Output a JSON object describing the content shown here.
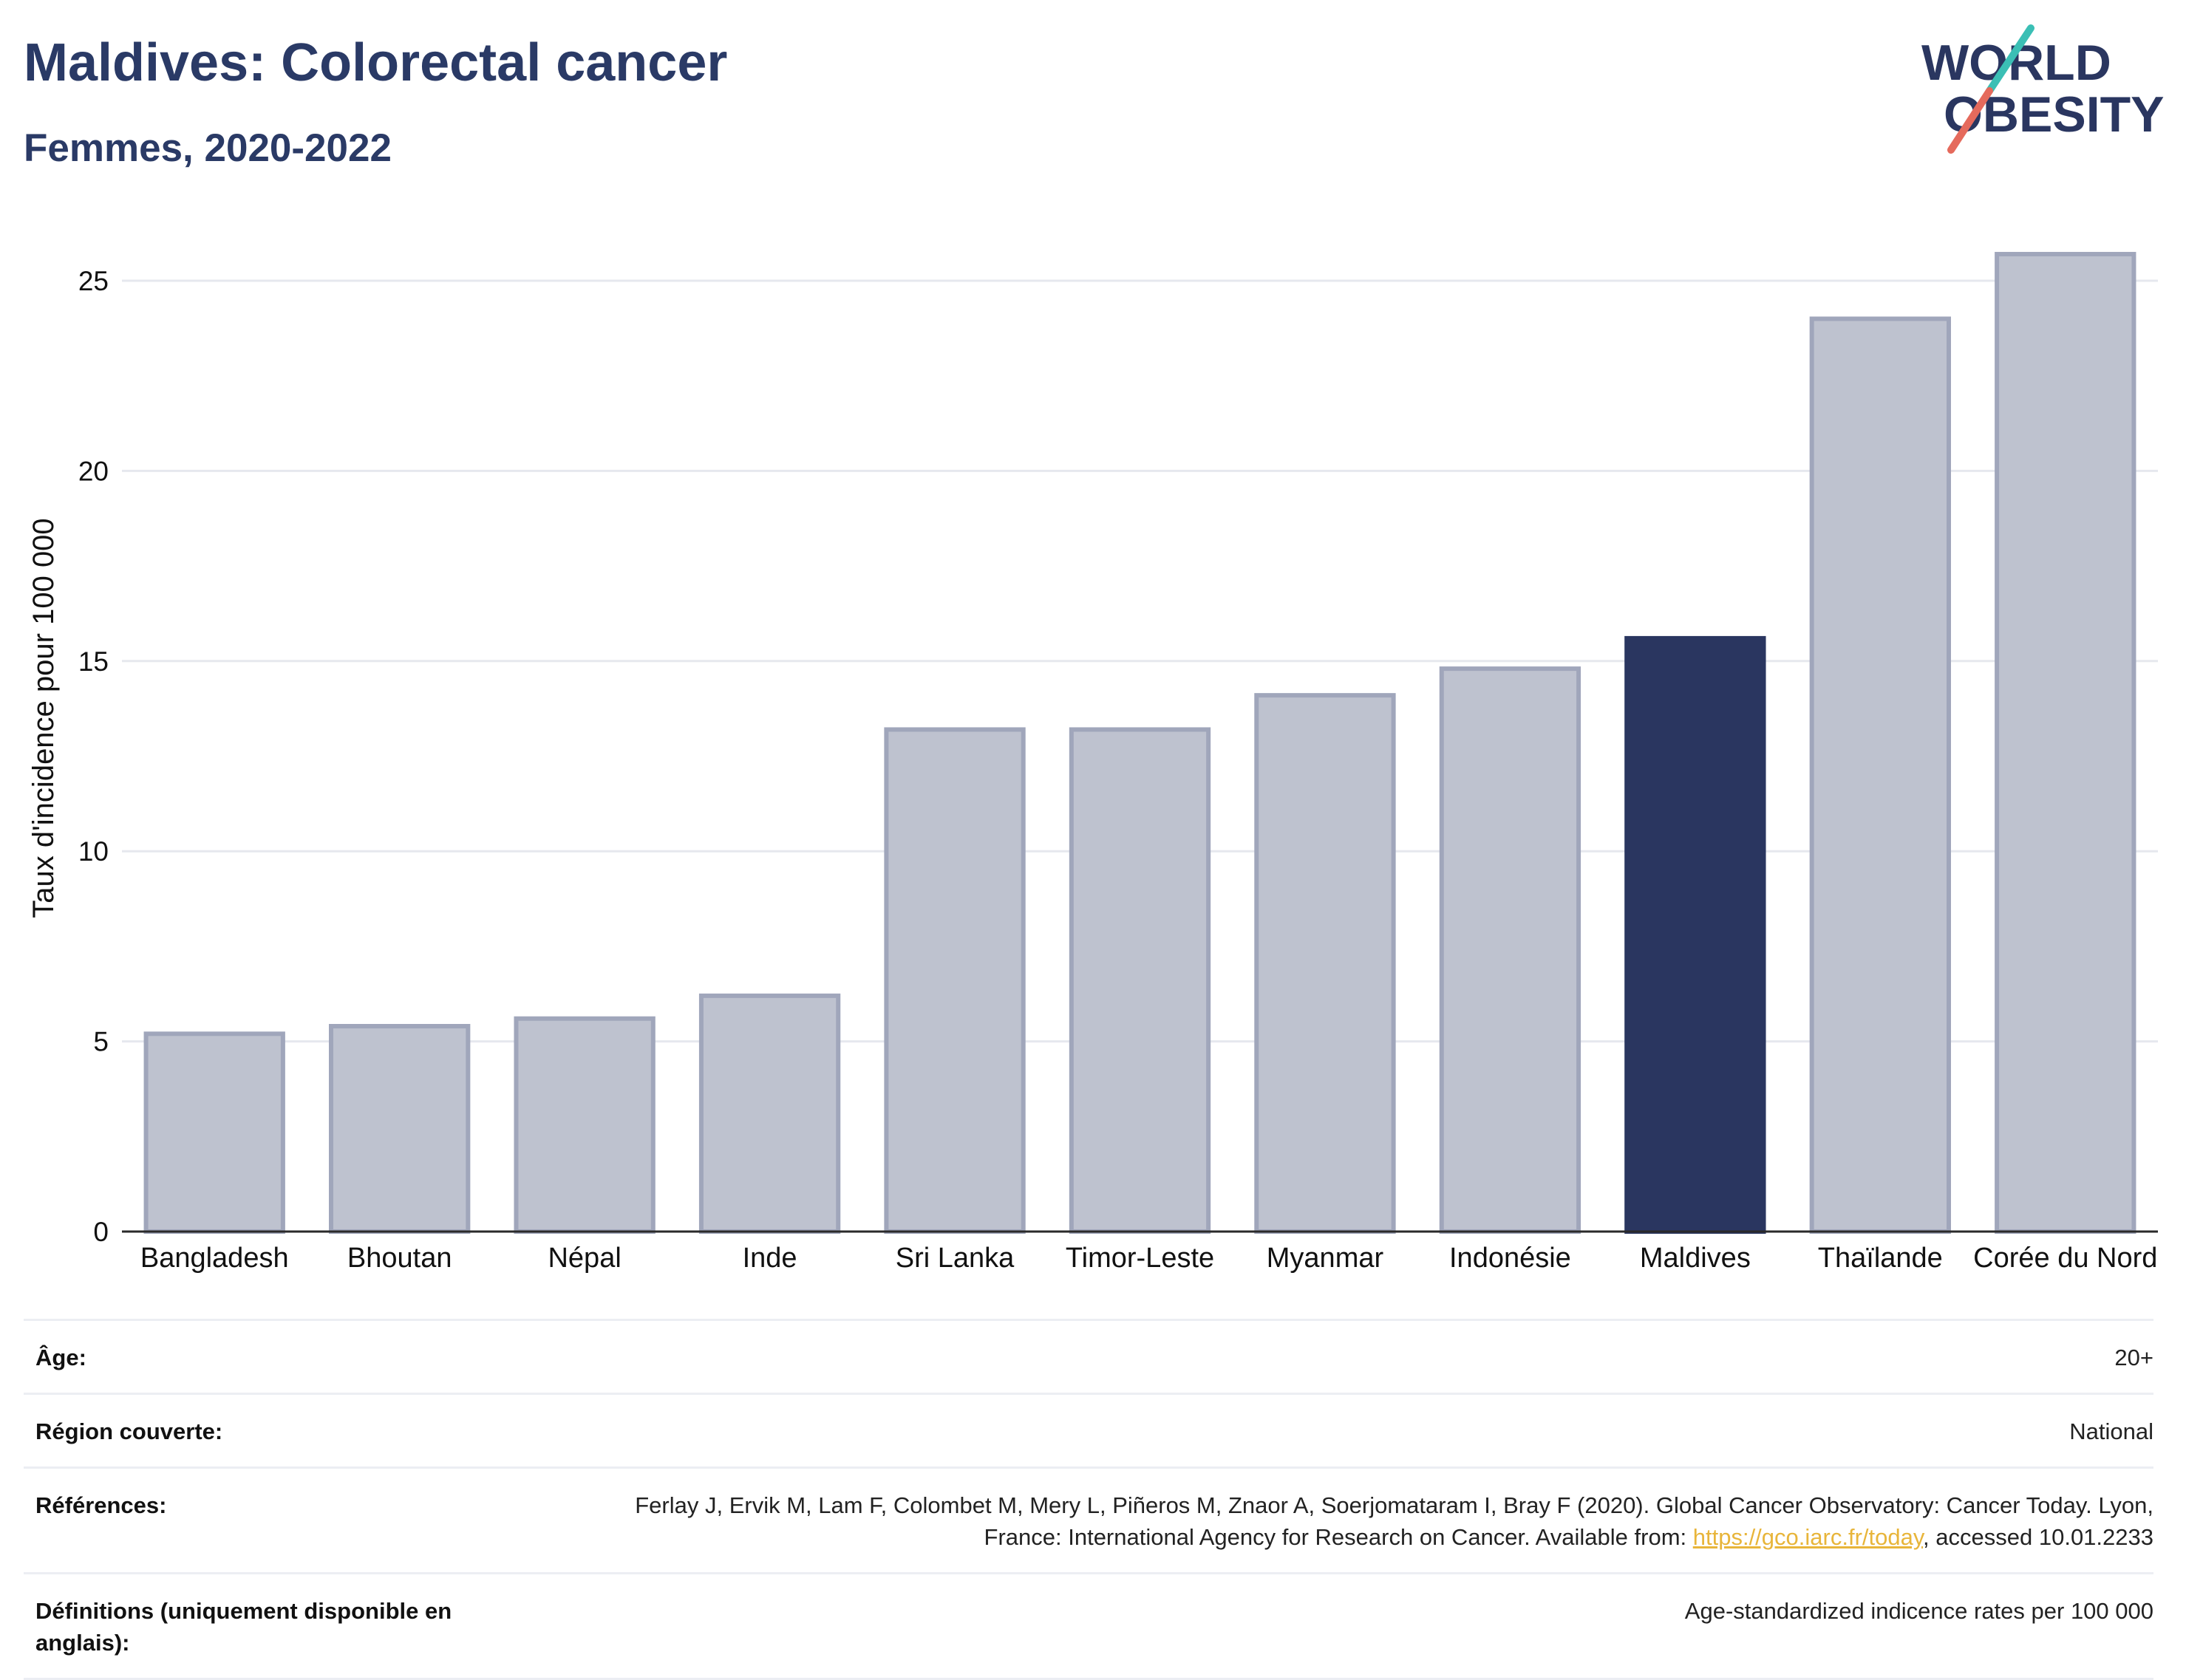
{
  "header": {
    "title": "Maldives: Colorectal cancer",
    "subtitle": "Femmes, 2020-2022"
  },
  "logo": {
    "line1": "WORLD",
    "line2": "OBESITY"
  },
  "chart_data": {
    "type": "bar",
    "title": "Maldives: Colorectal cancer",
    "subtitle": "Femmes, 2020-2022",
    "xlabel": "",
    "ylabel": "Taux d'incidence pour 100 000",
    "ylim": [
      0,
      26.5
    ],
    "yticks": [
      0,
      5,
      10,
      15,
      20,
      25
    ],
    "grid": true,
    "categories": [
      "Bangladesh",
      "Bhoutan",
      "Népal",
      "Inde",
      "Sri Lanka",
      "Timor-Leste",
      "Myanmar",
      "Indonésie",
      "Maldives",
      "Thaïlande",
      "Corée du Nord"
    ],
    "values": [
      5.2,
      5.4,
      5.6,
      6.2,
      13.2,
      13.2,
      14.1,
      14.8,
      15.6,
      24.0,
      25.7
    ],
    "highlight": "Maldives",
    "colors": {
      "highlight": "#2a3660",
      "other": "#bec2cf",
      "other_stroke": "#a0a6bb",
      "axis": "#2a2a2a",
      "grid": "#e6e8ee"
    }
  },
  "meta": [
    {
      "label": "Âge:",
      "value": "20+"
    },
    {
      "label": "Région couverte:",
      "value": "National"
    },
    {
      "label": "Références:",
      "value_pre": "Ferlay J, Ervik M, Lam F, Colombet M, Mery L, Piñeros M, Znaor A, Soerjomataram I, Bray F (2020). Global Cancer Observatory: Cancer Today. Lyon, France: International Agency for Research on Cancer. Available from: ",
      "link": "https://gco.iarc.fr/today",
      "value_post": ", accessed 10.01.2233"
    },
    {
      "label": "Définitions (uniquement disponible en anglais):",
      "value": "Age-standardized indicence rates per 100 000"
    }
  ]
}
